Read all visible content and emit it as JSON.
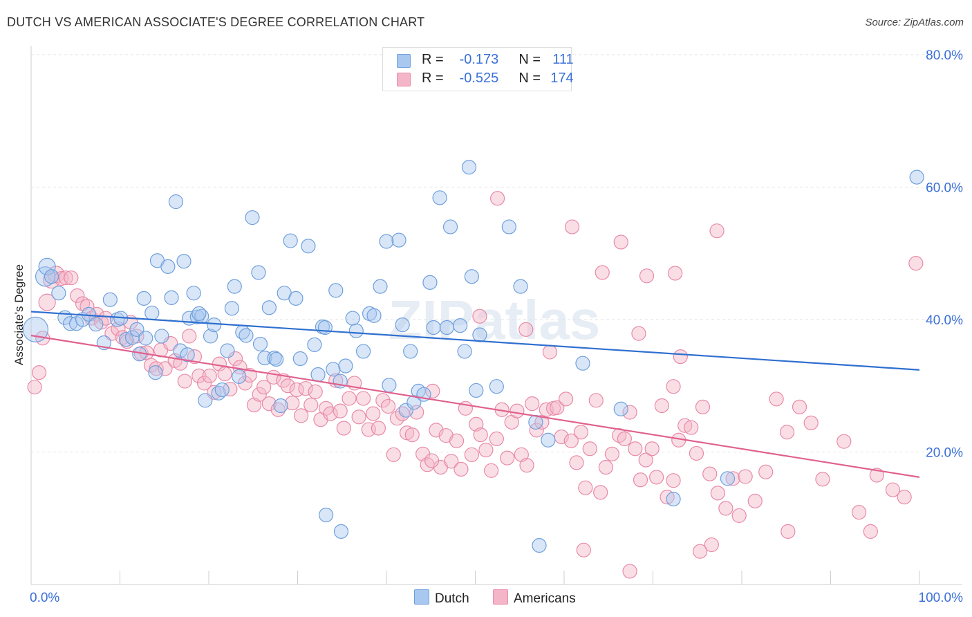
{
  "title": "DUTCH VS AMERICAN ASSOCIATE'S DEGREE CORRELATION CHART",
  "source": "Source: ZipAtlas.com",
  "watermark": "ZIPatlas",
  "legend_top": {
    "r_label": "R =",
    "n_label": "N =",
    "rows": [
      {
        "r": "-0.173",
        "n": "111"
      },
      {
        "r": "-0.525",
        "n": "174"
      }
    ]
  },
  "colors": {
    "dutch_fill": "#a9c8f0",
    "dutch_stroke": "#6f9fdc",
    "dutch_line": "#2f6fd0",
    "american_fill": "#f5b5c8",
    "american_stroke": "#e88aa8",
    "american_line": "#e0608e",
    "axis_label": "#3a6fd8"
  },
  "chart_data": {
    "type": "scatter",
    "title": "DUTCH VS AMERICAN ASSOCIATE'S DEGREE CORRELATION CHART",
    "xlabel": "",
    "ylabel": "Associate's Degree",
    "xlim": [
      0,
      100
    ],
    "ylim": [
      0,
      80
    ],
    "x_tick_labels": [
      "0.0%",
      "100.0%"
    ],
    "y_ticks": [
      20,
      40,
      60,
      80
    ],
    "y_tick_labels": [
      "20.0%",
      "40.0%",
      "60.0%",
      "80.0%"
    ],
    "grid": true,
    "legend_position": "bottom",
    "series": [
      {
        "name": "Dutch",
        "r": -0.173,
        "n": 111,
        "trend": [
          [
            0,
            41.2
          ],
          [
            100,
            32.4
          ]
        ],
        "points": [
          [
            0.5,
            38.5
          ],
          [
            1.6,
            46.5
          ],
          [
            1.8,
            48.0
          ],
          [
            2.3,
            46.5
          ],
          [
            3.1,
            44.0
          ],
          [
            3.8,
            40.3
          ],
          [
            4.4,
            39.4
          ],
          [
            5.1,
            39.4
          ],
          [
            5.8,
            40.0
          ],
          [
            6.5,
            40.8
          ],
          [
            7.3,
            39.3
          ],
          [
            8.2,
            36.5
          ],
          [
            8.9,
            43.0
          ],
          [
            9.7,
            40.0
          ],
          [
            10.1,
            40.2
          ],
          [
            10.7,
            37.0
          ],
          [
            11.4,
            37.3
          ],
          [
            11.9,
            38.5
          ],
          [
            12.2,
            34.8
          ],
          [
            12.7,
            43.2
          ],
          [
            12.9,
            37.2
          ],
          [
            13.6,
            41.0
          ],
          [
            14.0,
            32.0
          ],
          [
            14.2,
            48.9
          ],
          [
            14.7,
            37.5
          ],
          [
            15.4,
            48.0
          ],
          [
            15.8,
            43.3
          ],
          [
            16.3,
            57.8
          ],
          [
            16.8,
            35.3
          ],
          [
            17.2,
            48.8
          ],
          [
            17.6,
            34.7
          ],
          [
            17.8,
            40.2
          ],
          [
            18.3,
            44.0
          ],
          [
            18.7,
            40.4
          ],
          [
            19.2,
            40.5
          ],
          [
            19.6,
            27.8
          ],
          [
            20.2,
            37.5
          ],
          [
            20.6,
            39.2
          ],
          [
            21.1,
            28.9
          ],
          [
            21.5,
            29.4
          ],
          [
            22.1,
            35.3
          ],
          [
            22.6,
            41.7
          ],
          [
            22.9,
            45.0
          ],
          [
            23.4,
            31.4
          ],
          [
            23.8,
            38.1
          ],
          [
            24.2,
            37.6
          ],
          [
            24.9,
            55.4
          ],
          [
            25.6,
            47.1
          ],
          [
            25.8,
            36.3
          ],
          [
            26.3,
            34.2
          ],
          [
            26.8,
            41.8
          ],
          [
            27.4,
            34.2
          ],
          [
            27.6,
            34.0
          ],
          [
            28.1,
            27.0
          ],
          [
            28.5,
            44.0
          ],
          [
            29.2,
            51.9
          ],
          [
            29.8,
            43.2
          ],
          [
            30.3,
            34.1
          ],
          [
            31.2,
            51.1
          ],
          [
            31.9,
            36.2
          ],
          [
            32.3,
            31.7
          ],
          [
            32.8,
            38.9
          ],
          [
            33.1,
            38.8
          ],
          [
            34.0,
            32.5
          ],
          [
            34.3,
            44.4
          ],
          [
            34.8,
            30.7
          ],
          [
            35.4,
            33.0
          ],
          [
            36.2,
            40.2
          ],
          [
            36.6,
            38.3
          ],
          [
            37.4,
            35.2
          ],
          [
            38.1,
            40.9
          ],
          [
            38.6,
            40.6
          ],
          [
            39.3,
            45.0
          ],
          [
            40.0,
            51.8
          ],
          [
            40.3,
            30.1
          ],
          [
            41.4,
            52.0
          ],
          [
            41.8,
            39.2
          ],
          [
            42.2,
            26.3
          ],
          [
            42.7,
            35.2
          ],
          [
            43.1,
            27.5
          ],
          [
            43.6,
            29.2
          ],
          [
            44.2,
            28.7
          ],
          [
            44.9,
            45.6
          ],
          [
            45.3,
            38.8
          ],
          [
            46.0,
            58.4
          ],
          [
            46.8,
            38.8
          ],
          [
            47.2,
            54.0
          ],
          [
            48.3,
            39.1
          ],
          [
            48.8,
            35.2
          ],
          [
            49.3,
            63.0
          ],
          [
            49.6,
            46.5
          ],
          [
            50.1,
            29.3
          ],
          [
            50.5,
            37.7
          ],
          [
            52.4,
            29.9
          ],
          [
            53.8,
            54.0
          ],
          [
            55.1,
            45.0
          ],
          [
            56.8,
            24.5
          ],
          [
            58.2,
            21.8
          ],
          [
            62.1,
            33.4
          ],
          [
            66.4,
            26.5
          ],
          [
            72.3,
            12.9
          ],
          [
            78.4,
            16.0
          ],
          [
            99.7,
            61.5
          ],
          [
            33.2,
            10.5
          ],
          [
            34.9,
            8.0
          ],
          [
            57.2,
            5.9
          ],
          [
            18.9,
            40.9
          ]
        ]
      },
      {
        "name": "Americans",
        "r": -0.525,
        "n": 174,
        "trend": [
          [
            0,
            37.6
          ],
          [
            100,
            16.2
          ]
        ],
        "points": [
          [
            0.4,
            29.8
          ],
          [
            0.9,
            32.0
          ],
          [
            1.3,
            37.2
          ],
          [
            1.8,
            42.6
          ],
          [
            2.3,
            46.0
          ],
          [
            2.8,
            46.8
          ],
          [
            3.4,
            46.2
          ],
          [
            3.9,
            46.3
          ],
          [
            4.5,
            46.3
          ],
          [
            5.2,
            43.6
          ],
          [
            5.8,
            42.4
          ],
          [
            6.3,
            42.0
          ],
          [
            6.8,
            40.2
          ],
          [
            7.4,
            40.8
          ],
          [
            7.9,
            39.6
          ],
          [
            8.4,
            40.2
          ],
          [
            9.1,
            37.9
          ],
          [
            9.8,
            38.6
          ],
          [
            10.3,
            37.3
          ],
          [
            10.8,
            36.7
          ],
          [
            11.2,
            39.6
          ],
          [
            11.9,
            37.5
          ],
          [
            12.4,
            34.9
          ],
          [
            13.0,
            35.0
          ],
          [
            13.5,
            33.1
          ],
          [
            14.1,
            32.6
          ],
          [
            14.6,
            35.4
          ],
          [
            15.1,
            32.6
          ],
          [
            15.7,
            36.4
          ],
          [
            16.2,
            33.8
          ],
          [
            16.8,
            33.4
          ],
          [
            17.3,
            30.7
          ],
          [
            17.8,
            37.5
          ],
          [
            18.4,
            34.4
          ],
          [
            18.9,
            31.5
          ],
          [
            19.5,
            30.4
          ],
          [
            20.1,
            31.5
          ],
          [
            20.6,
            29.0
          ],
          [
            21.2,
            33.3
          ],
          [
            21.8,
            31.8
          ],
          [
            22.4,
            29.5
          ],
          [
            23.0,
            34.1
          ],
          [
            23.5,
            32.8
          ],
          [
            24.1,
            30.4
          ],
          [
            24.6,
            31.6
          ],
          [
            25.1,
            27.1
          ],
          [
            25.7,
            28.7
          ],
          [
            26.2,
            29.8
          ],
          [
            26.8,
            27.3
          ],
          [
            27.3,
            31.3
          ],
          [
            27.8,
            26.4
          ],
          [
            28.4,
            30.8
          ],
          [
            28.9,
            30.0
          ],
          [
            29.4,
            27.4
          ],
          [
            29.9,
            29.4
          ],
          [
            30.4,
            25.5
          ],
          [
            30.9,
            29.6
          ],
          [
            31.5,
            27.1
          ],
          [
            32.0,
            29.1
          ],
          [
            32.6,
            24.9
          ],
          [
            33.2,
            26.6
          ],
          [
            33.7,
            25.8
          ],
          [
            34.3,
            30.8
          ],
          [
            34.8,
            26.2
          ],
          [
            35.2,
            23.6
          ],
          [
            35.8,
            28.1
          ],
          [
            36.4,
            30.4
          ],
          [
            36.9,
            25.3
          ],
          [
            37.4,
            28.1
          ],
          [
            38.0,
            23.4
          ],
          [
            38.5,
            25.8
          ],
          [
            39.1,
            23.6
          ],
          [
            39.6,
            27.8
          ],
          [
            40.2,
            26.9
          ],
          [
            40.8,
            19.6
          ],
          [
            41.2,
            25.1
          ],
          [
            41.8,
            25.8
          ],
          [
            42.3,
            22.9
          ],
          [
            42.9,
            22.6
          ],
          [
            43.4,
            26.0
          ],
          [
            44.1,
            19.7
          ],
          [
            44.6,
            18.1
          ],
          [
            45.2,
            29.2
          ],
          [
            45.6,
            23.3
          ],
          [
            46.1,
            17.7
          ],
          [
            46.7,
            22.5
          ],
          [
            47.3,
            18.6
          ],
          [
            47.9,
            21.7
          ],
          [
            48.4,
            17.4
          ],
          [
            48.9,
            26.6
          ],
          [
            49.6,
            19.6
          ],
          [
            50.1,
            24.2
          ],
          [
            50.6,
            22.6
          ],
          [
            51.2,
            20.3
          ],
          [
            51.8,
            17.2
          ],
          [
            52.4,
            22.0
          ],
          [
            53.0,
            26.4
          ],
          [
            53.6,
            19.1
          ],
          [
            54.1,
            24.5
          ],
          [
            54.7,
            26.2
          ],
          [
            55.2,
            19.6
          ],
          [
            55.8,
            18.0
          ],
          [
            56.4,
            27.3
          ],
          [
            56.9,
            23.3
          ],
          [
            57.5,
            24.5
          ],
          [
            58.0,
            26.4
          ],
          [
            58.8,
            26.6
          ],
          [
            59.2,
            26.7
          ],
          [
            59.7,
            22.3
          ],
          [
            60.2,
            28.0
          ],
          [
            60.8,
            21.7
          ],
          [
            61.4,
            18.4
          ],
          [
            61.9,
            23.0
          ],
          [
            62.4,
            14.6
          ],
          [
            62.9,
            20.5
          ],
          [
            63.6,
            27.8
          ],
          [
            64.1,
            13.9
          ],
          [
            64.7,
            17.7
          ],
          [
            65.4,
            19.7
          ],
          [
            66.2,
            22.5
          ],
          [
            66.8,
            22.0
          ],
          [
            67.4,
            26.0
          ],
          [
            68.0,
            20.5
          ],
          [
            68.6,
            15.8
          ],
          [
            69.2,
            18.8
          ],
          [
            69.9,
            20.5
          ],
          [
            70.4,
            16.2
          ],
          [
            71.0,
            27.0
          ],
          [
            71.6,
            13.2
          ],
          [
            72.3,
            15.7
          ],
          [
            72.9,
            21.8
          ],
          [
            73.6,
            24.0
          ],
          [
            74.3,
            23.7
          ],
          [
            74.9,
            19.8
          ],
          [
            75.6,
            26.8
          ],
          [
            76.4,
            16.7
          ],
          [
            77.3,
            13.8
          ],
          [
            78.2,
            11.5
          ],
          [
            79.0,
            16.0
          ],
          [
            79.7,
            10.4
          ],
          [
            80.4,
            16.3
          ],
          [
            81.5,
            12.6
          ],
          [
            82.7,
            17.0
          ],
          [
            83.9,
            28.0
          ],
          [
            85.1,
            23.0
          ],
          [
            86.5,
            26.8
          ],
          [
            87.8,
            24.4
          ],
          [
            89.1,
            15.9
          ],
          [
            91.5,
            21.6
          ],
          [
            93.2,
            10.9
          ],
          [
            95.2,
            16.5
          ],
          [
            97.0,
            14.3
          ],
          [
            98.3,
            13.2
          ],
          [
            99.6,
            48.5
          ],
          [
            52.5,
            58.3
          ],
          [
            60.9,
            54.0
          ],
          [
            66.4,
            51.7
          ],
          [
            69.3,
            46.6
          ],
          [
            64.3,
            47.1
          ],
          [
            72.5,
            47.0
          ],
          [
            77.2,
            53.4
          ],
          [
            50.5,
            40.5
          ],
          [
            58.4,
            35.1
          ],
          [
            68.4,
            37.9
          ],
          [
            73.1,
            34.4
          ],
          [
            72.3,
            29.9
          ],
          [
            45.1,
            18.7
          ],
          [
            55.7,
            38.5
          ],
          [
            62.2,
            5.2
          ],
          [
            67.4,
            2.0
          ],
          [
            75.3,
            5.0
          ],
          [
            85.2,
            8.0
          ],
          [
            94.5,
            8.0
          ],
          [
            76.6,
            6.0
          ]
        ]
      }
    ]
  },
  "bottom_legend": [
    "Dutch",
    "Americans"
  ]
}
